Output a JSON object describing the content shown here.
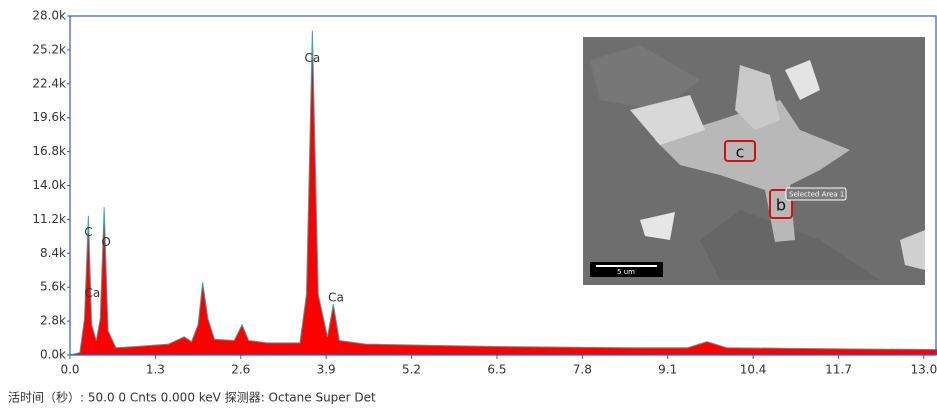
{
  "chart_data": {
    "type": "area",
    "color": "#ff0000",
    "outline_color": "#3aa7a0",
    "axis_color": "#3a55c8",
    "xlim": [
      0,
      13.2
    ],
    "ylim": [
      0,
      28000
    ],
    "xticks": [
      {
        "value": 0,
        "label": "0.0"
      },
      1.3,
      2.6,
      3.9,
      5.2,
      6.5,
      7.8,
      9.1,
      10.4,
      11.7,
      {
        "value": 13,
        "label": "13.0"
      }
    ],
    "yticks": [
      {
        "value": 0,
        "label": "0.0k"
      },
      {
        "value": 2800,
        "label": "2.8k"
      },
      {
        "value": 5600,
        "label": "5.6k"
      },
      {
        "value": 8400,
        "label": "8.4k"
      },
      {
        "value": 11200,
        "label": "11.2k"
      },
      {
        "value": 14000,
        "label": "14.0k"
      },
      {
        "value": 16800,
        "label": "16.8k"
      },
      {
        "value": 19600,
        "label": "19.6k"
      },
      {
        "value": 22400,
        "label": "22.4k"
      },
      {
        "value": 25200,
        "label": "25.2k"
      },
      {
        "value": 28000,
        "label": "28.0k"
      }
    ],
    "x": [
      0.0,
      0.15,
      0.22,
      0.28,
      0.33,
      0.4,
      0.46,
      0.52,
      0.58,
      0.7,
      1.0,
      1.5,
      1.74,
      1.85,
      1.95,
      2.02,
      2.1,
      2.2,
      2.5,
      2.62,
      2.72,
      3.0,
      3.5,
      3.6,
      3.69,
      3.78,
      3.92,
      4.01,
      4.1,
      4.5,
      5.5,
      6.5,
      7.5,
      8.5,
      9.4,
      9.7,
      10.0,
      11.0,
      12.0,
      13.2
    ],
    "values": [
      0,
      200,
      3000,
      11500,
      2500,
      1200,
      3000,
      12200,
      2000,
      600,
      700,
      900,
      1500,
      1100,
      2500,
      6000,
      3000,
      1300,
      1200,
      2500,
      1200,
      1000,
      1000,
      5000,
      26800,
      5000,
      1500,
      4200,
      1200,
      900,
      800,
      700,
      650,
      600,
      600,
      1100,
      600,
      550,
      500,
      450
    ],
    "annotations": [
      {
        "text": "C",
        "x": 0.28,
        "y": 10100
      },
      {
        "text": "O",
        "x": 0.55,
        "y": 9300
      },
      {
        "text": "Ca",
        "x": 0.34,
        "y": 5100
      },
      {
        "text": "Ca",
        "x": 3.69,
        "y": 24500
      },
      {
        "text": "Ca",
        "x": 4.05,
        "y": 4700
      }
    ],
    "inset": {
      "labels": [
        "c",
        "b"
      ],
      "callout": "Selected Area 1",
      "scale_bar": "5 um"
    },
    "footer": "活时间（秒）: 50.0 0 Cnts  0.000 keV 探测器: Octane Super Det"
  }
}
